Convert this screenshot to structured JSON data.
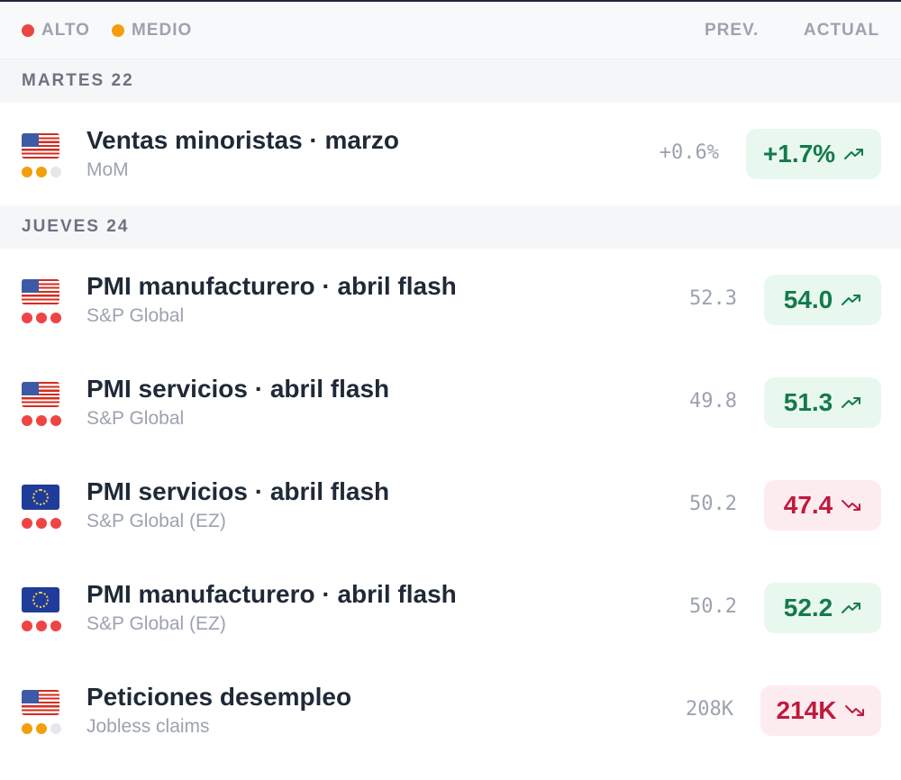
{
  "header": {
    "legend": [
      {
        "label": "ALTO",
        "color": "#ef4444"
      },
      {
        "label": "MEDIO",
        "color": "#f59e0b"
      }
    ],
    "col_prev": "PREV.",
    "col_actual": "ACTUAL"
  },
  "days": [
    {
      "label": "MARTES 22",
      "events": [
        {
          "flag": "us-flag",
          "importance": "medio",
          "title": "Ventas minoristas · marzo",
          "subtitle": "MoM",
          "prev": "+0.6%",
          "actual": "+1.7%",
          "direction": "up"
        }
      ]
    },
    {
      "label": "JUEVES 24",
      "events": [
        {
          "flag": "us-flag",
          "importance": "alto",
          "title": "PMI manufacturero · abril flash",
          "subtitle": "S&P Global",
          "prev": "52.3",
          "actual": "54.0",
          "direction": "up"
        },
        {
          "flag": "us-flag",
          "importance": "alto",
          "title": "PMI servicios · abril flash",
          "subtitle": "S&P Global",
          "prev": "49.8",
          "actual": "51.3",
          "direction": "up"
        },
        {
          "flag": "eu-flag",
          "importance": "alto",
          "title": "PMI servicios · abril flash",
          "subtitle": "S&P Global (EZ)",
          "prev": "50.2",
          "actual": "47.4",
          "direction": "down"
        },
        {
          "flag": "eu-flag",
          "importance": "alto",
          "title": "PMI manufacturero · abril flash",
          "subtitle": "S&P Global (EZ)",
          "prev": "50.2",
          "actual": "52.2",
          "direction": "up"
        },
        {
          "flag": "us-flag",
          "importance": "medio",
          "title": "Peticiones desempleo",
          "subtitle": "Jobless claims",
          "prev": "208K",
          "actual": "214K",
          "direction": "down"
        }
      ]
    }
  ],
  "colors": {
    "alto": "#ef4444",
    "medio": "#f59e0b",
    "empty": "#e5e7eb",
    "up": "#137b4a",
    "down": "#c01a3c"
  }
}
